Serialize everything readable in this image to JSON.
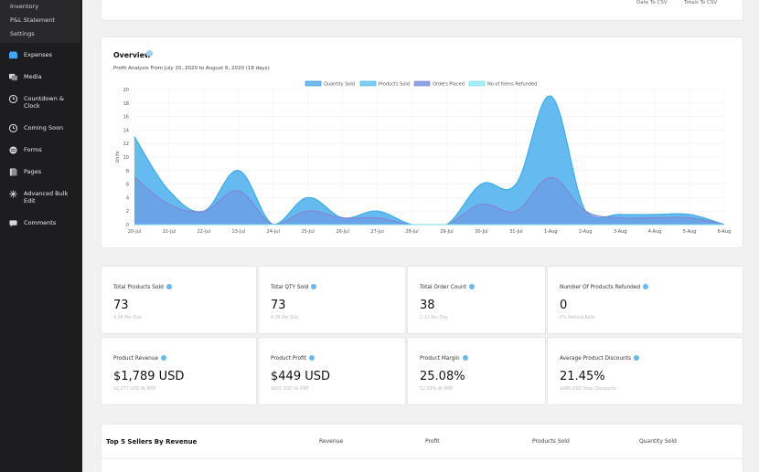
{
  "sidebar": {
    "sub_items": [
      "Inventory",
      "P&L Statement",
      "Settings"
    ],
    "items": [
      {
        "label": "Expenses",
        "icon": "expenses-icon",
        "active": true
      },
      {
        "label": "Media",
        "icon": "media-icon"
      },
      {
        "label": "Countdown &",
        "label2": "Clock",
        "icon": "clock-icon"
      },
      {
        "label": "Coming Soon",
        "icon": "coming-soon-icon"
      },
      {
        "label": "Forms",
        "icon": "forms-icon"
      },
      {
        "label": "Pages",
        "icon": "pages-icon"
      },
      {
        "label": "Advanced Bulk",
        "label2": "Edit",
        "icon": "bulk-edit-icon"
      },
      {
        "label": "Comments",
        "icon": "comments-icon"
      }
    ]
  },
  "top_card": {
    "buttons": [
      "Date To CSV",
      "Totals To CSV"
    ]
  },
  "overview": {
    "title": "Overview",
    "subtitle": "Profit Analysis From July 20, 2020 to August 6, 2020 (18 days)"
  },
  "chart_data": {
    "type": "area",
    "ylabel": "Units",
    "ylim": [
      0,
      20
    ],
    "yticks": [
      0,
      2,
      4,
      6,
      8,
      10,
      12,
      14,
      16,
      18,
      20
    ],
    "categories": [
      "20-Jul",
      "21-Jul",
      "22-Jul",
      "23-Jul",
      "24-Jul",
      "25-Jul",
      "26-Jul",
      "27-Jul",
      "28-Jul",
      "29-Jul",
      "30-Jul",
      "31-Jul",
      "1-Aug",
      "2-Aug",
      "3-Aug",
      "4-Aug",
      "5-Aug",
      "6-Aug"
    ],
    "legend_position": "top-center",
    "grid": true,
    "series": [
      {
        "name": "Quantity Sold",
        "color": "#4aa8e8",
        "values": [
          13,
          5,
          2,
          8,
          0,
          4,
          1,
          2,
          0,
          0,
          6,
          6,
          19,
          2,
          1.5,
          1.5,
          1.5,
          0
        ]
      },
      {
        "name": "Products Sold",
        "color": "#5fc3ee",
        "values": [
          13,
          5,
          2,
          8,
          0,
          4,
          1,
          2,
          0,
          0,
          6,
          6,
          19,
          2,
          1.5,
          1.5,
          1.5,
          0
        ]
      },
      {
        "name": "Orders Placed",
        "color": "#8f86d6",
        "values": [
          7,
          3,
          2,
          5,
          0,
          2,
          1,
          1,
          0,
          0,
          3,
          2,
          7,
          2,
          1,
          1,
          1,
          0
        ]
      },
      {
        "name": "No of Items Refunded",
        "color": "#8de8f2",
        "values": [
          0,
          0,
          0,
          0,
          0,
          0,
          0,
          0,
          0,
          0,
          0,
          0,
          0,
          0,
          0,
          0,
          0,
          0
        ]
      }
    ]
  },
  "stats": [
    {
      "label": "Total Products Sold",
      "value": "73",
      "note": "4.06 Per Day"
    },
    {
      "label": "Total QTY Sold",
      "value": "73",
      "note": "4.06 Per Day"
    },
    {
      "label": "Total Order Count",
      "value": "38",
      "note": "2.11 Per Day"
    },
    {
      "label": "Number Of Products Refunded",
      "value": "0",
      "note": "0% Refund Rate"
    },
    {
      "label": "Product Revenue",
      "value": "$1,789 USD",
      "note": "$2,277 USD At RRP"
    },
    {
      "label": "Product Profit",
      "value": "$449 USD",
      "note": "$891 USD At RRP"
    },
    {
      "label": "Product Margin",
      "value": "25.08%",
      "note": "52.59% At RRP"
    },
    {
      "label": "Average Product Discounts",
      "value": "21.45%",
      "note": "$488 USD Total Discounts"
    }
  ],
  "sellers": {
    "title": "Top 5 Sellers By Revenue",
    "columns": [
      "Revenue",
      "Profit",
      "Products Sold",
      "Quantity Sold"
    ]
  }
}
